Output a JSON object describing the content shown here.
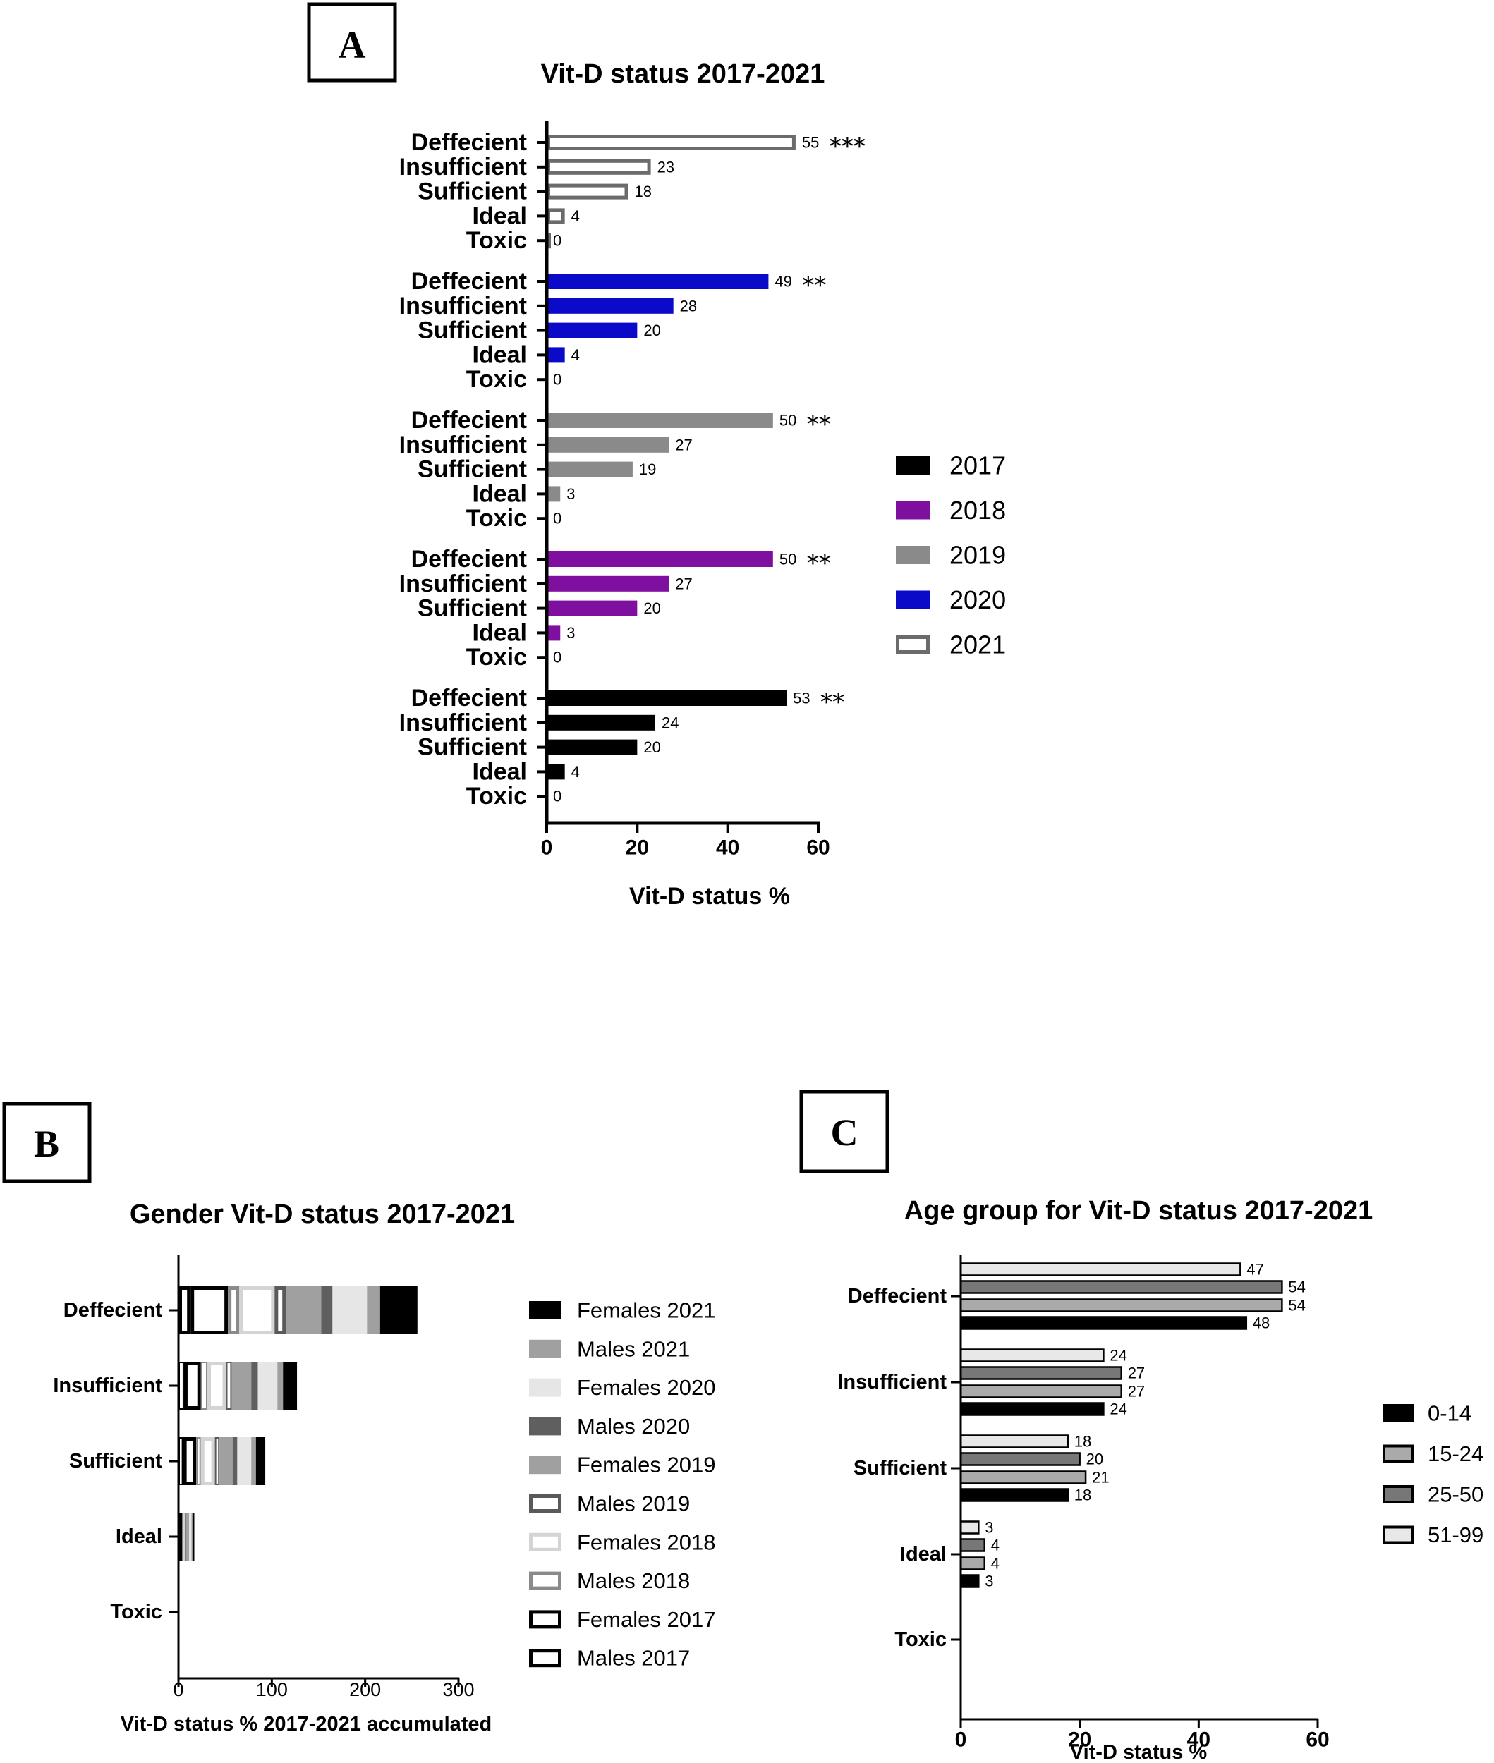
{
  "chart_data": [
    {
      "panel": "A",
      "type": "bar",
      "orientation": "horizontal",
      "title": "Vit-D status 2017-2021",
      "xlabel": "Vit-D status %",
      "ylabel": "",
      "xlim": [
        0,
        60
      ],
      "xticks": [
        "0",
        "20",
        "40",
        "60"
      ],
      "legend_position": "right",
      "categories": [
        "Deffecient",
        "Insufficient",
        "Sufficient",
        "Ideal",
        "Toxic"
      ],
      "series": [
        {
          "name": "2021",
          "color": "#6b6b6b",
          "style": "outline",
          "values": [
            55,
            23,
            18,
            4,
            0
          ],
          "labels": [
            "55",
            "23",
            "18",
            "4",
            "0"
          ],
          "significance": "***"
        },
        {
          "name": "2020",
          "color": "#0a0ac8",
          "style": "solid",
          "values": [
            49,
            28,
            20,
            4,
            0
          ],
          "labels": [
            "49",
            "28",
            "20",
            "4",
            "0"
          ],
          "significance": "**"
        },
        {
          "name": "2019",
          "color": "#8a8a8a",
          "style": "solid",
          "values": [
            50,
            27,
            19,
            3,
            0
          ],
          "labels": [
            "50",
            "27",
            "19",
            "3",
            "0"
          ],
          "significance": "**"
        },
        {
          "name": "2018",
          "color": "#7f0f9e",
          "style": "solid",
          "values": [
            50,
            27,
            20,
            3,
            0
          ],
          "labels": [
            "50",
            "27",
            "20",
            "3",
            "0"
          ],
          "significance": "**"
        },
        {
          "name": "2017",
          "color": "#000000",
          "style": "solid",
          "values": [
            53,
            24,
            20,
            4,
            0
          ],
          "labels": [
            "53",
            "24",
            "20",
            "4",
            "0"
          ],
          "significance": "**"
        }
      ],
      "legend": [
        "2017",
        "2018",
        "2019",
        "2020",
        "2021"
      ]
    },
    {
      "panel": "B",
      "type": "bar",
      "orientation": "horizontal",
      "stacked": true,
      "title": "Gender Vit-D status 2017-2021",
      "xlabel": "Vit-D status % 2017-2021 accumulated",
      "ylabel": "",
      "xlim": [
        0,
        300
      ],
      "xticks": [
        "0",
        "100",
        "200",
        "300"
      ],
      "legend_position": "right",
      "categories": [
        "Deffecient",
        "Insufficient",
        "Sufficient",
        "Ideal",
        "Toxic"
      ],
      "series": [
        {
          "name": "Males 2017",
          "fill": "#ffffff",
          "stroke": "#000000",
          "values": [
            13,
            6,
            5,
            1,
            0
          ]
        },
        {
          "name": "Females 2017",
          "fill": "#ffffff",
          "stroke": "#000000",
          "values": [
            40,
            18,
            14,
            3,
            0
          ]
        },
        {
          "name": "Males 2018",
          "fill": "#ffffff",
          "stroke": "#8a8a8a",
          "values": [
            12,
            7,
            5,
            1,
            0
          ]
        },
        {
          "name": "Females 2018",
          "fill": "#ffffff",
          "stroke": "#d4d4d4",
          "values": [
            38,
            20,
            15,
            2,
            0
          ]
        },
        {
          "name": "Males 2019",
          "fill": "#ffffff",
          "stroke": "#5a5a5a",
          "values": [
            12,
            6,
            5,
            1,
            0
          ]
        },
        {
          "name": "Females 2019",
          "fill": "#a0a0a0",
          "stroke": "#a0a0a0",
          "values": [
            38,
            21,
            14,
            2,
            0
          ]
        },
        {
          "name": "Males 2020",
          "fill": "#5f5f5f",
          "stroke": "#5f5f5f",
          "values": [
            12,
            7,
            5,
            1,
            0
          ]
        },
        {
          "name": "Females 2020",
          "fill": "#e6e6e6",
          "stroke": "#e6e6e6",
          "values": [
            37,
            21,
            15,
            3,
            0
          ]
        },
        {
          "name": "Males 2021",
          "fill": "#a0a0a0",
          "stroke": "#a0a0a0",
          "values": [
            14,
            6,
            5,
            1,
            0
          ]
        },
        {
          "name": "Females 2021",
          "fill": "#000000",
          "stroke": "#000000",
          "values": [
            40,
            15,
            10,
            2,
            0
          ]
        }
      ],
      "legend": [
        "Females 2021",
        "Males 2021",
        "Females 2020",
        "Males 2020",
        "Females 2019",
        "Males 2019",
        "Females 2018",
        "Males 2018",
        "Females 2017",
        "Males 2017"
      ]
    },
    {
      "panel": "C",
      "type": "bar",
      "orientation": "horizontal",
      "title": "Age group for Vit-D status 2017-2021",
      "xlabel": "Vit-D status %",
      "ylabel": "",
      "xlim": [
        0,
        60
      ],
      "xticks": [
        "0",
        "20",
        "40",
        "60"
      ],
      "legend_position": "right",
      "categories": [
        "Deffecient",
        "Insufficient",
        "Sufficient",
        "Ideal",
        "Toxic"
      ],
      "series": [
        {
          "name": "51-99",
          "fill": "#e8e8e8",
          "values": [
            47,
            24,
            18,
            3,
            0
          ],
          "labels": [
            "47",
            "24",
            "18",
            "3",
            ""
          ]
        },
        {
          "name": "25-50",
          "fill": "#777777",
          "values": [
            54,
            27,
            20,
            4,
            0
          ],
          "labels": [
            "54",
            "27",
            "20",
            "4",
            ""
          ]
        },
        {
          "name": "15-24",
          "fill": "#aaaaaa",
          "values": [
            54,
            27,
            21,
            4,
            0
          ],
          "labels": [
            "54",
            "27",
            "21",
            "4",
            ""
          ]
        },
        {
          "name": "0-14",
          "fill": "#000000",
          "values": [
            48,
            24,
            18,
            3,
            0
          ],
          "labels": [
            "48",
            "24",
            "18",
            "3",
            ""
          ]
        }
      ],
      "legend": [
        "0-14",
        "15-24",
        "25-50",
        "51-99"
      ]
    }
  ]
}
